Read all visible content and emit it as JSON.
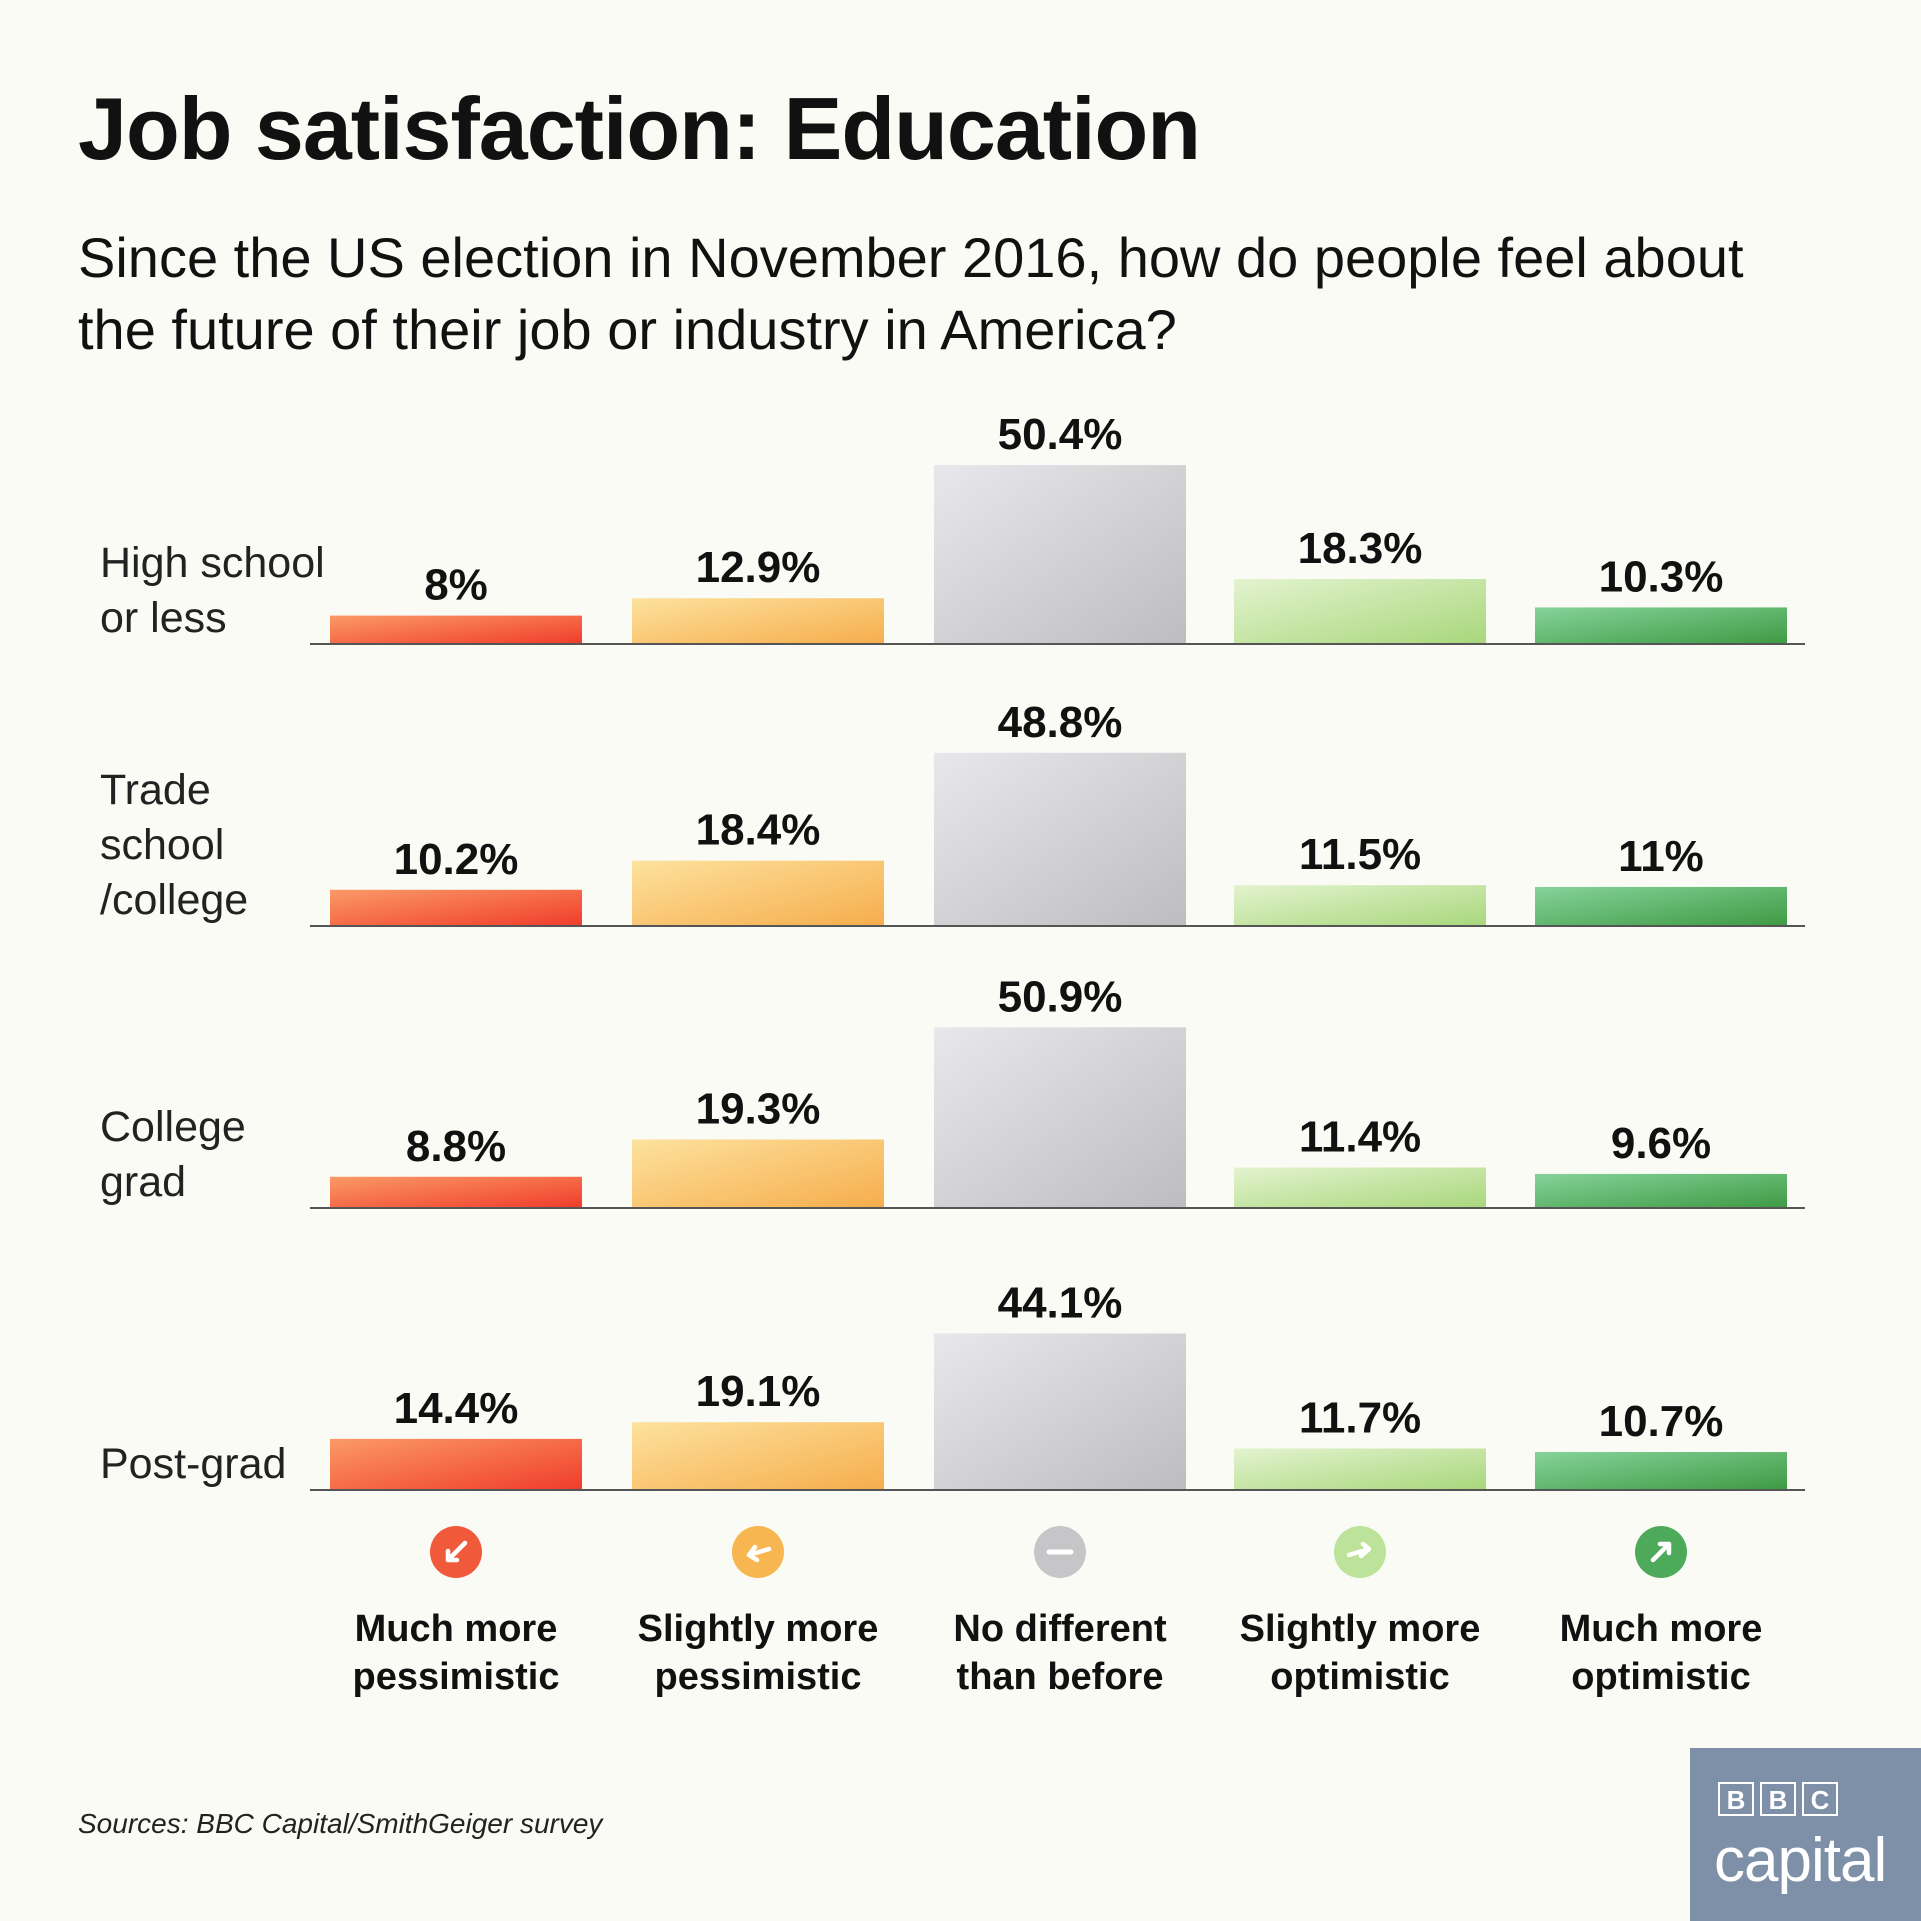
{
  "title": "Job satisfaction: Education",
  "subtitle": "Since the US election in November 2016, how do people feel about the future of their job or industry in America?",
  "source": "Sources: BBC Capital/SmithGeiger survey",
  "logo": {
    "b1": "B",
    "b2": "B",
    "c": "C",
    "word": "capital"
  },
  "chart_data": {
    "type": "bar",
    "title": "Job satisfaction: Education",
    "subtitle": "Since the US election in November 2016, how do people feel about the future of their job or industry in America?",
    "value_format": "percent",
    "categories": [
      {
        "lines": [
          "Much more",
          "pessimistic"
        ],
        "icon": "arrow-down-left-icon",
        "colors": [
          "#fb9a66",
          "#f03c2b"
        ],
        "icon_color": "#f05a3a"
      },
      {
        "lines": [
          "Slightly more",
          "pessimistic"
        ],
        "icon": "arrow-left-icon",
        "colors": [
          "#fde29e",
          "#f6ad4c"
        ],
        "icon_color": "#f7b650"
      },
      {
        "lines": [
          "No different",
          "than before"
        ],
        "icon": "minus-icon",
        "colors": [
          "#e8e8ec",
          "#bdbdbf"
        ],
        "icon_color": "#c6c6c8"
      },
      {
        "lines": [
          "Slightly more",
          "optimistic"
        ],
        "icon": "arrow-right-icon",
        "colors": [
          "#e3f3cf",
          "#a8d77b"
        ],
        "icon_color": "#bde39a"
      },
      {
        "lines": [
          "Much more",
          "optimistic"
        ],
        "icon": "arrow-up-right-icon",
        "colors": [
          "#86d39a",
          "#3e9a43"
        ],
        "icon_color": "#4eaa5b"
      }
    ],
    "series": [
      {
        "name": "High school or less",
        "label_lines": [
          "High school",
          "or less"
        ],
        "values": [
          8,
          12.9,
          50.4,
          18.3,
          10.3
        ],
        "labels": [
          "8%",
          "12.9%",
          "50.4%",
          "18.3%",
          "10.3%"
        ]
      },
      {
        "name": "Trade school/college",
        "label_lines": [
          "Trade",
          "school",
          "/college"
        ],
        "values": [
          10.2,
          18.4,
          48.8,
          11.5,
          11
        ],
        "labels": [
          "10.2%",
          "18.4%",
          "48.8%",
          "11.5%",
          "11%"
        ]
      },
      {
        "name": "College grad",
        "label_lines": [
          "College",
          "grad"
        ],
        "values": [
          8.8,
          19.3,
          50.9,
          11.4,
          9.6
        ],
        "labels": [
          "8.8%",
          "19.3%",
          "50.9%",
          "11.4%",
          "9.6%"
        ]
      },
      {
        "name": "Post-grad",
        "label_lines": [
          "Post-grad"
        ],
        "values": [
          14.4,
          19.1,
          44.1,
          11.7,
          10.7
        ],
        "labels": [
          "14.4%",
          "19.1%",
          "44.1%",
          "11.7%",
          "10.7%"
        ]
      }
    ],
    "grid": false,
    "legend": "bottom"
  }
}
